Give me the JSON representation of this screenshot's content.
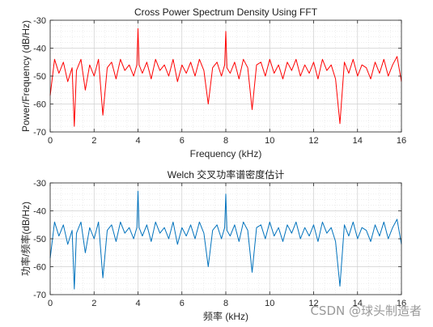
{
  "chart_data": [
    {
      "type": "line",
      "title": "Cross Power Spectrum Density Using FFT",
      "xlabel": "Frequency (kHz)",
      "ylabel": "Power/Frequency (dB/Hz)",
      "xlim": [
        0,
        16
      ],
      "ylim": [
        -70,
        -30
      ],
      "xticks": [
        0,
        2,
        4,
        6,
        8,
        10,
        12,
        14,
        16
      ],
      "yticks": [
        -30,
        -40,
        -50,
        -60,
        -70
      ],
      "grid": true,
      "minor_grid": true,
      "color": "#ff0000",
      "series": [
        {
          "x": [
            0,
            0.2,
            0.4,
            0.6,
            0.8,
            1.0,
            1.1,
            1.2,
            1.4,
            1.6,
            1.8,
            2.0,
            2.2,
            2.4,
            2.6,
            2.8,
            3.0,
            3.2,
            3.4,
            3.6,
            3.8,
            3.95,
            4.0,
            4.05,
            4.2,
            4.4,
            4.6,
            4.8,
            5.0,
            5.2,
            5.4,
            5.6,
            5.8,
            6.0,
            6.2,
            6.4,
            6.6,
            6.8,
            7.0,
            7.2,
            7.4,
            7.6,
            7.8,
            7.95,
            8.0,
            8.05,
            8.2,
            8.4,
            8.6,
            8.8,
            9.0,
            9.2,
            9.4,
            9.6,
            9.8,
            10.0,
            10.2,
            10.4,
            10.6,
            10.8,
            11.0,
            11.2,
            11.4,
            11.6,
            11.8,
            12.0,
            12.2,
            12.4,
            12.6,
            12.8,
            13.0,
            13.2,
            13.4,
            13.6,
            13.8,
            14.0,
            14.2,
            14.4,
            14.6,
            14.8,
            15.0,
            15.2,
            15.4,
            15.6,
            15.8,
            16.0
          ],
          "values": [
            -57,
            -44,
            -49,
            -45,
            -52,
            -47,
            -68,
            -48,
            -44,
            -55,
            -46,
            -50,
            -44,
            -64,
            -47,
            -45,
            -51,
            -44,
            -48,
            -46,
            -50,
            -46,
            -33,
            -46,
            -49,
            -45,
            -51,
            -44,
            -48,
            -46,
            -50,
            -44,
            -52,
            -46,
            -49,
            -45,
            -50,
            -44,
            -48,
            -60,
            -47,
            -45,
            -50,
            -46,
            -34,
            -47,
            -49,
            -45,
            -51,
            -44,
            -47,
            -62,
            -46,
            -45,
            -50,
            -44,
            -49,
            -46,
            -51,
            -45,
            -48,
            -44,
            -50,
            -46,
            -49,
            -45,
            -51,
            -44,
            -48,
            -46,
            -51,
            -67,
            -45,
            -49,
            -44,
            -50,
            -46,
            -47,
            -51,
            -45,
            -49,
            -44,
            -50,
            -46,
            -43,
            -52
          ]
        }
      ]
    },
    {
      "type": "line",
      "title": "Welch 交叉功率谱密度估计",
      "xlabel": "频率 (kHz)",
      "ylabel": "功率/频率(dB/Hz)",
      "xlim": [
        0,
        16
      ],
      "ylim": [
        -70,
        -30
      ],
      "xticks": [
        0,
        2,
        4,
        6,
        8,
        10,
        12,
        14,
        16
      ],
      "yticks": [
        -30,
        -40,
        -50,
        -60,
        -70
      ],
      "grid": true,
      "minor_grid": true,
      "color": "#0072bd",
      "series": [
        {
          "x": [
            0,
            0.2,
            0.4,
            0.6,
            0.8,
            1.0,
            1.1,
            1.2,
            1.4,
            1.6,
            1.8,
            2.0,
            2.2,
            2.4,
            2.6,
            2.8,
            3.0,
            3.2,
            3.4,
            3.6,
            3.8,
            3.95,
            4.0,
            4.05,
            4.2,
            4.4,
            4.6,
            4.8,
            5.0,
            5.2,
            5.4,
            5.6,
            5.8,
            6.0,
            6.2,
            6.4,
            6.6,
            6.8,
            7.0,
            7.2,
            7.4,
            7.6,
            7.8,
            7.95,
            8.0,
            8.05,
            8.2,
            8.4,
            8.6,
            8.8,
            9.0,
            9.2,
            9.4,
            9.6,
            9.8,
            10.0,
            10.2,
            10.4,
            10.6,
            10.8,
            11.0,
            11.2,
            11.4,
            11.6,
            11.8,
            12.0,
            12.2,
            12.4,
            12.6,
            12.8,
            13.0,
            13.2,
            13.4,
            13.6,
            13.8,
            14.0,
            14.2,
            14.4,
            14.6,
            14.8,
            15.0,
            15.2,
            15.4,
            15.6,
            15.8,
            16.0
          ],
          "values": [
            -57,
            -44,
            -49,
            -45,
            -52,
            -47,
            -68,
            -48,
            -44,
            -55,
            -46,
            -50,
            -44,
            -64,
            -47,
            -45,
            -51,
            -44,
            -48,
            -46,
            -50,
            -46,
            -33,
            -46,
            -49,
            -45,
            -51,
            -44,
            -48,
            -46,
            -50,
            -44,
            -52,
            -46,
            -49,
            -45,
            -50,
            -44,
            -48,
            -60,
            -47,
            -45,
            -50,
            -46,
            -34,
            -47,
            -49,
            -45,
            -51,
            -44,
            -47,
            -62,
            -46,
            -45,
            -50,
            -44,
            -49,
            -46,
            -51,
            -45,
            -48,
            -44,
            -50,
            -46,
            -49,
            -45,
            -51,
            -44,
            -48,
            -46,
            -51,
            -67,
            -45,
            -49,
            -44,
            -50,
            -46,
            -47,
            -51,
            -45,
            -49,
            -44,
            -50,
            -46,
            -43,
            -52
          ]
        }
      ]
    }
  ],
  "watermark": "CSDN @球头制造者"
}
